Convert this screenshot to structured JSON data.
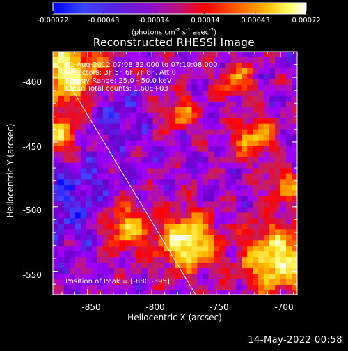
{
  "colorbar": {
    "ticks": [
      "-0.00072",
      "-0.00043",
      "-0.00014",
      "0.00014",
      "0.00043",
      "0.00072"
    ],
    "units_text": "(photons cm",
    "units_sup1": "-2",
    "units_mid1": " s",
    "units_sup2": "-1",
    "units_mid2": " asec",
    "units_sup3": "-2",
    "units_end": ")"
  },
  "title": "Reconstructed RHESSI Image",
  "info": {
    "line1": "01-Aug-2012 07:08:32.000 to 07:10:08.000",
    "line2": "Detectors: 3F 5F 6F 7F 8F, Att 0",
    "line3": "Energy Range: 25.0 - 50.0 keV",
    "line4": "Clean    Total counts: 1.60E+03"
  },
  "peak_label": "Position of Peak = [-880,-395]",
  "x_axis": {
    "label": "Heliocentric X (arcsec)",
    "ticks": [
      "-850",
      "-800",
      "-750",
      "-700"
    ]
  },
  "y_axis": {
    "label": "Heliocentric Y (arcsec)",
    "ticks": [
      "-400",
      "-450",
      "-500",
      "-550"
    ]
  },
  "date_stamp": "14-May-2022 00:58",
  "chart_data": {
    "type": "heatmap",
    "title": "Reconstructed RHESSI Image",
    "xlabel": "Heliocentric X (arcsec)",
    "ylabel": "Heliocentric Y (arcsec)",
    "xlim": [
      -877,
      -687
    ],
    "ylim": [
      -568,
      -380
    ],
    "xticks": [
      -850,
      -800,
      -750,
      -700
    ],
    "yticks": [
      -400,
      -450,
      -500,
      -550
    ],
    "colorbar_range": [
      -0.00072,
      0.00072
    ],
    "colorbar_ticks": [
      -0.00072,
      -0.00043,
      -0.00014,
      0.00014,
      0.00043,
      0.00072
    ],
    "colormap": [
      "#0000ff",
      "#4444ff",
      "#6a00c8",
      "#a000ff",
      "#c81e5a",
      "#ff0000",
      "#ff8000",
      "#ffc800",
      "#ffff80",
      "#ffffff"
    ],
    "peak_position": [
      -880,
      -395
    ],
    "limb_line": [
      [
        -873,
        -391
      ],
      [
        -766,
        -568
      ]
    ],
    "grid": false
  }
}
